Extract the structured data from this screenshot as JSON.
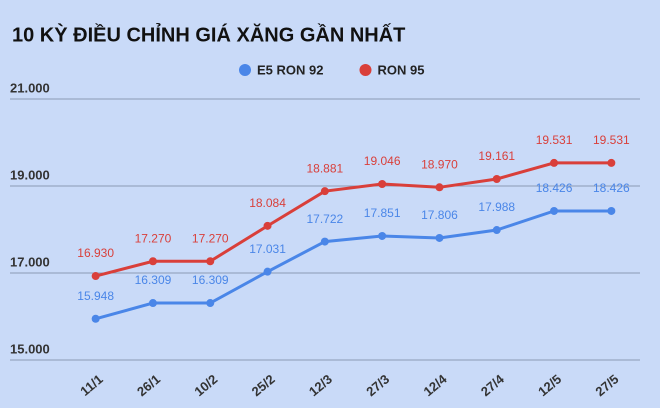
{
  "chart_data": {
    "type": "line",
    "title": "10 KỲ ĐIỀU CHỈNH GIÁ XĂNG GẦN NHẤT",
    "categories": [
      "11/1",
      "26/1",
      "10/2",
      "25/2",
      "12/3",
      "27/3",
      "12/4",
      "27/4",
      "12/5",
      "27/5"
    ],
    "series": [
      {
        "name": "E5 RON 92",
        "color": "#4a86e8",
        "values": [
          15948,
          16309,
          16309,
          17031,
          17722,
          17851,
          17806,
          17988,
          18426,
          18426
        ],
        "value_labels": [
          "15.948",
          "16.309",
          "16.309",
          "17.031",
          "17.722",
          "17.851",
          "17.806",
          "17.988",
          "18.426",
          "18.426"
        ]
      },
      {
        "name": "RON 95",
        "color": "#d93f3a",
        "values": [
          16930,
          17270,
          17270,
          18084,
          18881,
          19046,
          18970,
          19161,
          19531,
          19531
        ],
        "value_labels": [
          "16.930",
          "17.270",
          "17.270",
          "18.084",
          "18.881",
          "19.046",
          "18.970",
          "19.161",
          "19.531",
          "19.531"
        ]
      }
    ],
    "ylim": [
      15000,
      21000
    ],
    "yticks": [
      {
        "value": 15000,
        "label": "15.000"
      },
      {
        "value": 17000,
        "label": "17.000"
      },
      {
        "value": 19000,
        "label": "19.000"
      },
      {
        "value": 21000,
        "label": "21.000"
      }
    ],
    "grid": true,
    "legend": "top"
  }
}
